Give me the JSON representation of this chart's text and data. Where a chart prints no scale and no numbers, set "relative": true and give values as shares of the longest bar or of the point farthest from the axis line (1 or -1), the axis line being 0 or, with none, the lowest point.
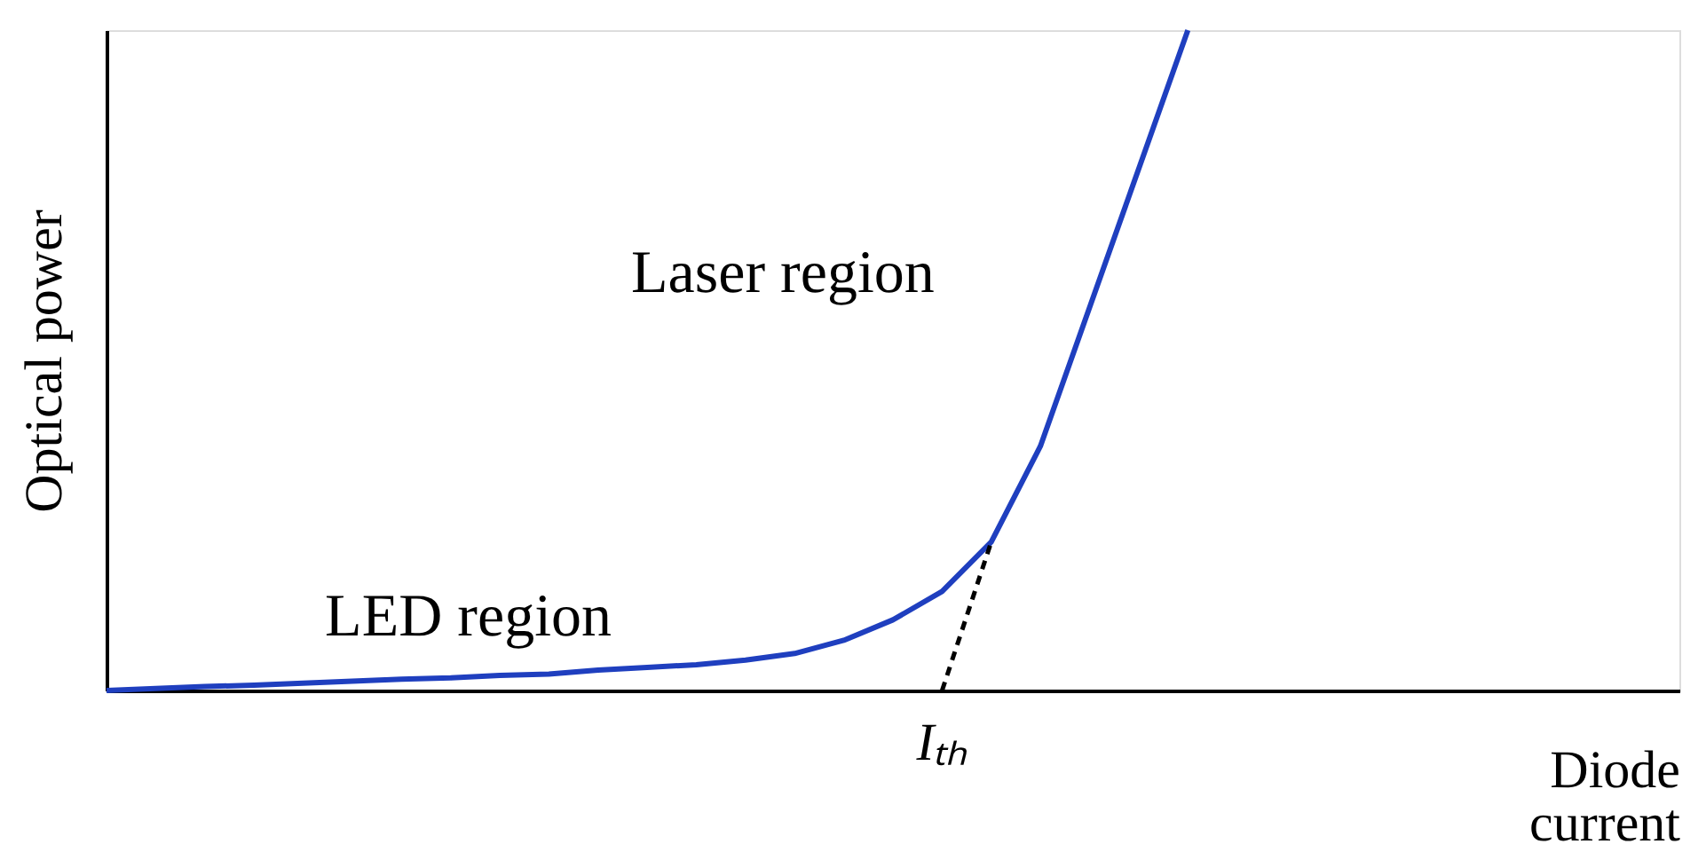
{
  "chart_data": {
    "type": "line",
    "relative": true,
    "xlabel": "Diode current",
    "ylabel": "Optical power",
    "categories": [
      null,
      null,
      null,
      null,
      null,
      null,
      null,
      null,
      null,
      null,
      null,
      null,
      null,
      null,
      null,
      null,
      null,
      null,
      null,
      null,
      null,
      null,
      null,
      null,
      null,
      null,
      null,
      null,
      null,
      null,
      null,
      null,
      null
    ],
    "series": [
      {
        "color": "#1f3fbf",
        "line_style": "solid",
        "values": [
          0,
          0.003,
          0.006,
          0.008,
          0.011,
          0.014,
          0.017,
          0.019,
          0.023,
          0.025,
          0.031,
          0.035,
          0.039,
          0.046,
          0.056,
          0.076,
          0.107,
          0.15,
          0.225,
          0.37,
          0.58,
          0.79,
          1,
          null,
          null,
          null,
          null,
          null,
          null,
          null,
          null,
          null,
          null
        ]
      },
      {
        "color": "#000000",
        "line_style": "dashed",
        "values": [
          null,
          null,
          null,
          null,
          null,
          null,
          null,
          null,
          null,
          null,
          null,
          null,
          null,
          null,
          null,
          null,
          null,
          0,
          0.225,
          null,
          null,
          null,
          null,
          null,
          null,
          null,
          null,
          null,
          null,
          null,
          null,
          null,
          null
        ]
      }
    ],
    "annotations": [
      "Laser region",
      "LED region",
      "Iₜₕ"
    ]
  }
}
